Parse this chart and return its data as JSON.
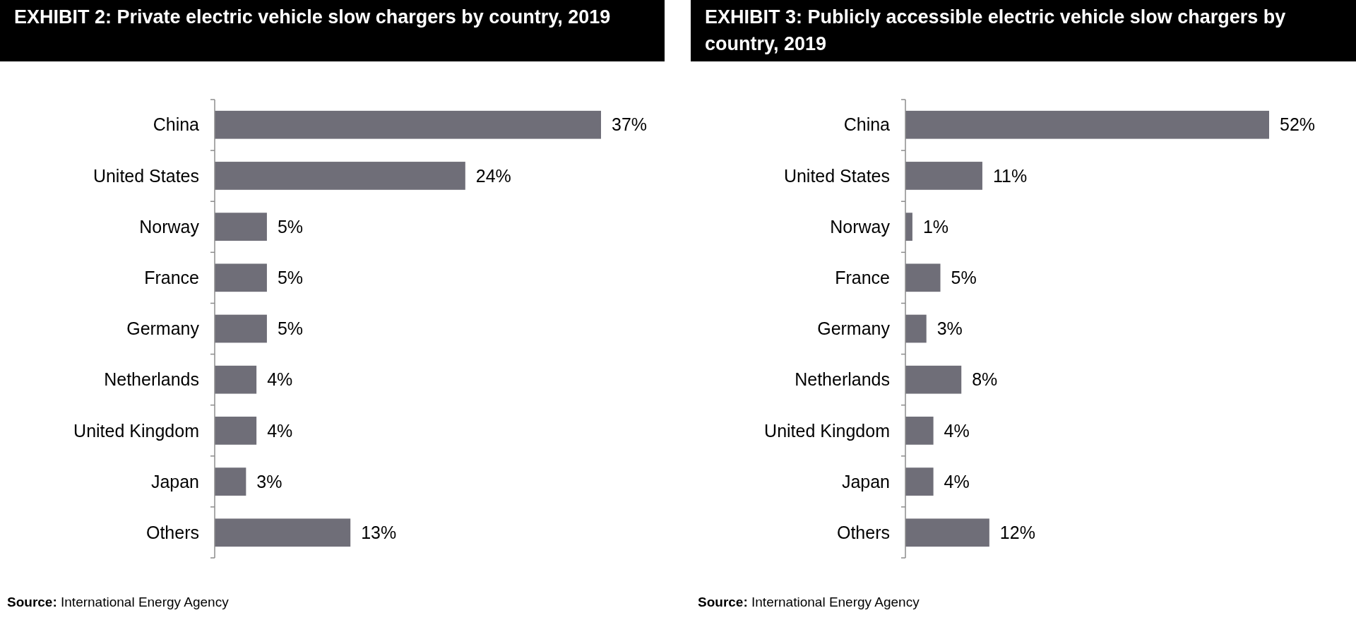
{
  "chart_data": [
    {
      "type": "bar",
      "orientation": "horizontal",
      "title": "EXHIBIT 2: Private electric vehicle slow chargers by country, 2019",
      "categories": [
        "China",
        "United States",
        "Norway",
        "France",
        "Germany",
        "Netherlands",
        "United Kingdom",
        "Japan",
        "Others"
      ],
      "values": [
        37,
        24,
        5,
        5,
        5,
        4,
        4,
        3,
        13
      ],
      "value_labels": [
        "37%",
        "24%",
        "5%",
        "5%",
        "5%",
        "4%",
        "4%",
        "3%",
        "13%"
      ],
      "color": "#6f6e78",
      "annotations": [
        "Source: International Energy Agency"
      ]
    },
    {
      "type": "bar",
      "orientation": "horizontal",
      "title": "EXHIBIT 3: Publicly accessible electric vehicle slow chargers by country, 2019",
      "categories": [
        "China",
        "United States",
        "Norway",
        "France",
        "Germany",
        "Netherlands",
        "United Kingdom",
        "Japan",
        "Others"
      ],
      "values": [
        52,
        11,
        1,
        5,
        3,
        8,
        4,
        4,
        12
      ],
      "value_labels": [
        "52%",
        "11%",
        "1%",
        "5%",
        "3%",
        "8%",
        "4%",
        "4%",
        "12%"
      ],
      "color": "#6f6e78",
      "annotations": [
        "Source: International Energy Agency"
      ]
    }
  ]
}
